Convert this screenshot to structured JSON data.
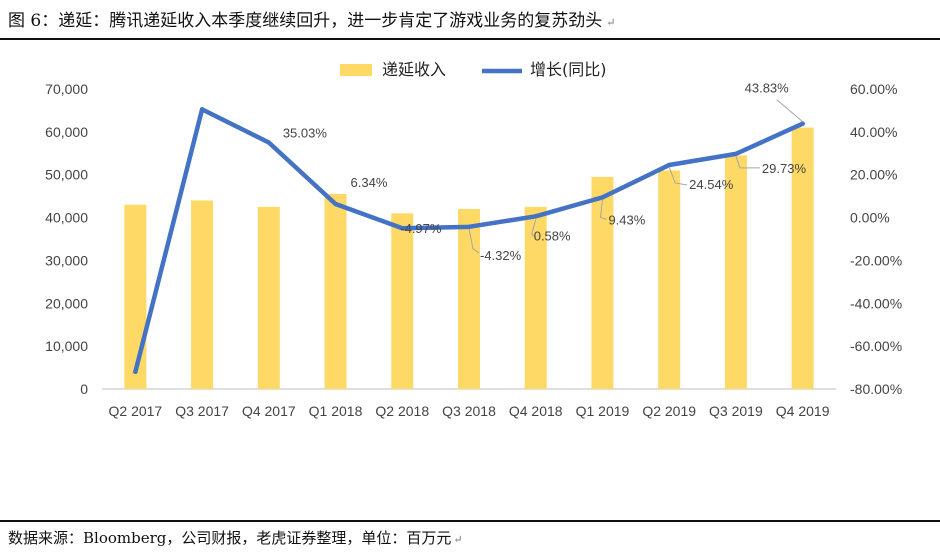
{
  "figure": {
    "title": "图 6：递延：腾讯递延收入本季度继续回升，进一步肯定了游戏业务的复苏劲头",
    "title_edit_mark": "↵",
    "source": "数据来源：Bloomberg，公司财报，老虎证券整理，单位：百万元",
    "source_edit_mark": "↵"
  },
  "colors": {
    "bar": "#FFD966",
    "line": "#4472C4",
    "highlight_label": "#E0433A",
    "axis": "#BFBFBF",
    "leader": "#A6A6A6"
  },
  "chart_data": {
    "type": "bar",
    "categories": [
      "Q2 2017",
      "Q3 2017",
      "Q4 2017",
      "Q1 2018",
      "Q2 2018",
      "Q3 2018",
      "Q4 2018",
      "Q1 2019",
      "Q2 2019",
      "Q3 2019",
      "Q4 2019"
    ],
    "series": [
      {
        "name": "递延收入",
        "type": "bar",
        "axis": "left",
        "values": [
          43000,
          44000,
          42500,
          45500,
          41000,
          42000,
          42500,
          49500,
          51000,
          54500,
          61000
        ]
      },
      {
        "name": "增长(同比)",
        "type": "line",
        "axis": "right",
        "values": [
          -72.0,
          50.5,
          35.03,
          6.34,
          -4.97,
          -4.32,
          0.58,
          9.43,
          24.54,
          29.73,
          43.83
        ],
        "labels": [
          "",
          "",
          "35.03%",
          "6.34%",
          "-4.97%",
          "-4.32%",
          "0.58%",
          "9.43%",
          "24.54%",
          "29.73%",
          "43.83%"
        ]
      }
    ],
    "legend": [
      "递延收入",
      "增长(同比)"
    ],
    "legend_position": "top-center",
    "y_left": {
      "min": 0,
      "max": 70000,
      "ticks": [
        "0",
        "10,000",
        "20,000",
        "30,000",
        "40,000",
        "50,000",
        "60,000",
        "70,000"
      ]
    },
    "y_right": {
      "min": -80,
      "max": 60,
      "ticks": [
        "-80.00%",
        "-60.00%",
        "-40.00%",
        "-20.00%",
        "0.00%",
        "20.00%",
        "40.00%",
        "60.00%"
      ]
    },
    "x_tick_labels": [
      "Q2 2017",
      "Q3 2017",
      "Q4 2017",
      "Q1 2018",
      "Q2 2018",
      "Q3 2018",
      "Q4 2018",
      "Q1 2019",
      "Q2 2019",
      "Q3 2019",
      "Q4 2019"
    ],
    "grid": false
  }
}
